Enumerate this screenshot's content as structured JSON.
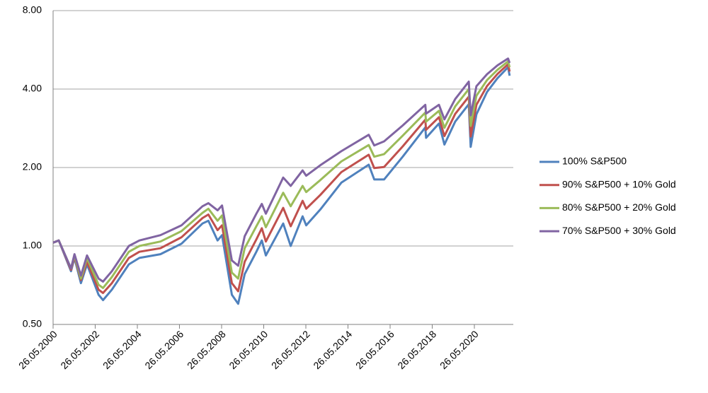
{
  "chart_data": {
    "type": "line",
    "yscale": "log",
    "grid": true,
    "legend": "right",
    "ylim": [
      0.5,
      8
    ],
    "yticks": [
      {
        "value": 0.5,
        "label": "0.50"
      },
      {
        "value": 1,
        "label": "1.00"
      },
      {
        "value": 2,
        "label": "2.00"
      },
      {
        "value": 4,
        "label": "4.00"
      },
      {
        "value": 8,
        "label": "8.00"
      }
    ],
    "xlim": [
      "2000-05-26",
      "2022-04-01"
    ],
    "xticks": [
      {
        "value": "2000-05-26",
        "label": "26.05.2000"
      },
      {
        "value": "2002-05-26",
        "label": "26.05.2002"
      },
      {
        "value": "2004-05-26",
        "label": "26.05.2004"
      },
      {
        "value": "2006-05-26",
        "label": "26.05.2006"
      },
      {
        "value": "2008-05-26",
        "label": "26.05.2008"
      },
      {
        "value": "2010-05-26",
        "label": "26.05.2010"
      },
      {
        "value": "2012-05-26",
        "label": "26.05.2012"
      },
      {
        "value": "2014-05-26",
        "label": "26.05.2014"
      },
      {
        "value": "2016-05-26",
        "label": "26.05.2016"
      },
      {
        "value": "2018-05-26",
        "label": "26.05.2018"
      },
      {
        "value": "2020-05-26",
        "label": "26.05.2020"
      }
    ],
    "x": [
      "2000-05-26",
      "2000-09-01",
      "2001-04-02",
      "2001-06-01",
      "2001-09-21",
      "2002-01-04",
      "2002-07-23",
      "2002-10-09",
      "2003-03-11",
      "2003-12-31",
      "2004-06-30",
      "2005-06-30",
      "2006-06-30",
      "2007-06-29",
      "2007-10-09",
      "2008-03-17",
      "2008-06-02",
      "2008-11-20",
      "2009-03-09",
      "2009-06-30",
      "2010-01-19",
      "2010-04-23",
      "2010-07-02",
      "2011-04-29",
      "2011-09-06",
      "2012-03-30",
      "2012-06-01",
      "2013-01-31",
      "2014-01-31",
      "2015-05-21",
      "2015-08-25",
      "2016-02-11",
      "2016-12-30",
      "2018-01-26",
      "2018-02-08",
      "2018-09-20",
      "2018-12-24",
      "2019-06-28",
      "2020-02-19",
      "2020-03-23",
      "2020-06-30",
      "2020-12-31",
      "2021-06-30",
      "2021-12-31",
      "2022-01-27"
    ],
    "series": [
      {
        "name": "100% S&P500",
        "color": "#4f81bd",
        "values": [
          1.03,
          1.05,
          0.8,
          0.9,
          0.72,
          0.85,
          0.65,
          0.62,
          0.68,
          0.85,
          0.9,
          0.93,
          1.02,
          1.22,
          1.25,
          1.05,
          1.1,
          0.65,
          0.6,
          0.78,
          0.95,
          1.05,
          0.92,
          1.22,
          1.0,
          1.3,
          1.2,
          1.38,
          1.75,
          2.05,
          1.8,
          1.8,
          2.2,
          2.85,
          2.6,
          2.95,
          2.45,
          3.0,
          3.5,
          2.4,
          3.2,
          3.9,
          4.4,
          4.85,
          4.5
        ]
      },
      {
        "name": "90% S&P500 + 10% Gold",
        "color": "#c0504d",
        "values": [
          1.03,
          1.05,
          0.81,
          0.91,
          0.74,
          0.87,
          0.68,
          0.66,
          0.72,
          0.9,
          0.95,
          0.98,
          1.08,
          1.28,
          1.32,
          1.15,
          1.2,
          0.72,
          0.67,
          0.87,
          1.06,
          1.17,
          1.04,
          1.4,
          1.19,
          1.49,
          1.39,
          1.57,
          1.92,
          2.24,
          1.99,
          2.01,
          2.41,
          3.05,
          2.79,
          3.12,
          2.64,
          3.21,
          3.74,
          2.63,
          3.48,
          4.11,
          4.57,
          4.98,
          4.67
        ]
      },
      {
        "name": "80% S&P500 + 20% Gold",
        "color": "#9bbb59",
        "values": [
          1.03,
          1.05,
          0.82,
          0.92,
          0.75,
          0.9,
          0.71,
          0.69,
          0.76,
          0.95,
          1.0,
          1.04,
          1.14,
          1.34,
          1.39,
          1.25,
          1.31,
          0.79,
          0.75,
          0.98,
          1.19,
          1.3,
          1.18,
          1.6,
          1.42,
          1.7,
          1.61,
          1.79,
          2.11,
          2.44,
          2.2,
          2.25,
          2.65,
          3.25,
          3.0,
          3.3,
          2.84,
          3.43,
          4.0,
          2.89,
          3.77,
          4.33,
          4.74,
          5.11,
          4.85
        ]
      },
      {
        "name": "70% S&P500 + 30% Gold",
        "color": "#8064a2",
        "values": [
          1.03,
          1.05,
          0.82,
          0.93,
          0.77,
          0.92,
          0.75,
          0.73,
          0.8,
          1.0,
          1.05,
          1.1,
          1.2,
          1.42,
          1.46,
          1.37,
          1.43,
          0.88,
          0.84,
          1.09,
          1.33,
          1.45,
          1.33,
          1.83,
          1.7,
          1.95,
          1.86,
          2.04,
          2.31,
          2.67,
          2.43,
          2.52,
          2.9,
          3.48,
          3.22,
          3.48,
          3.06,
          3.66,
          4.27,
          3.17,
          4.1,
          4.56,
          4.93,
          5.24,
          5.04
        ]
      }
    ]
  }
}
